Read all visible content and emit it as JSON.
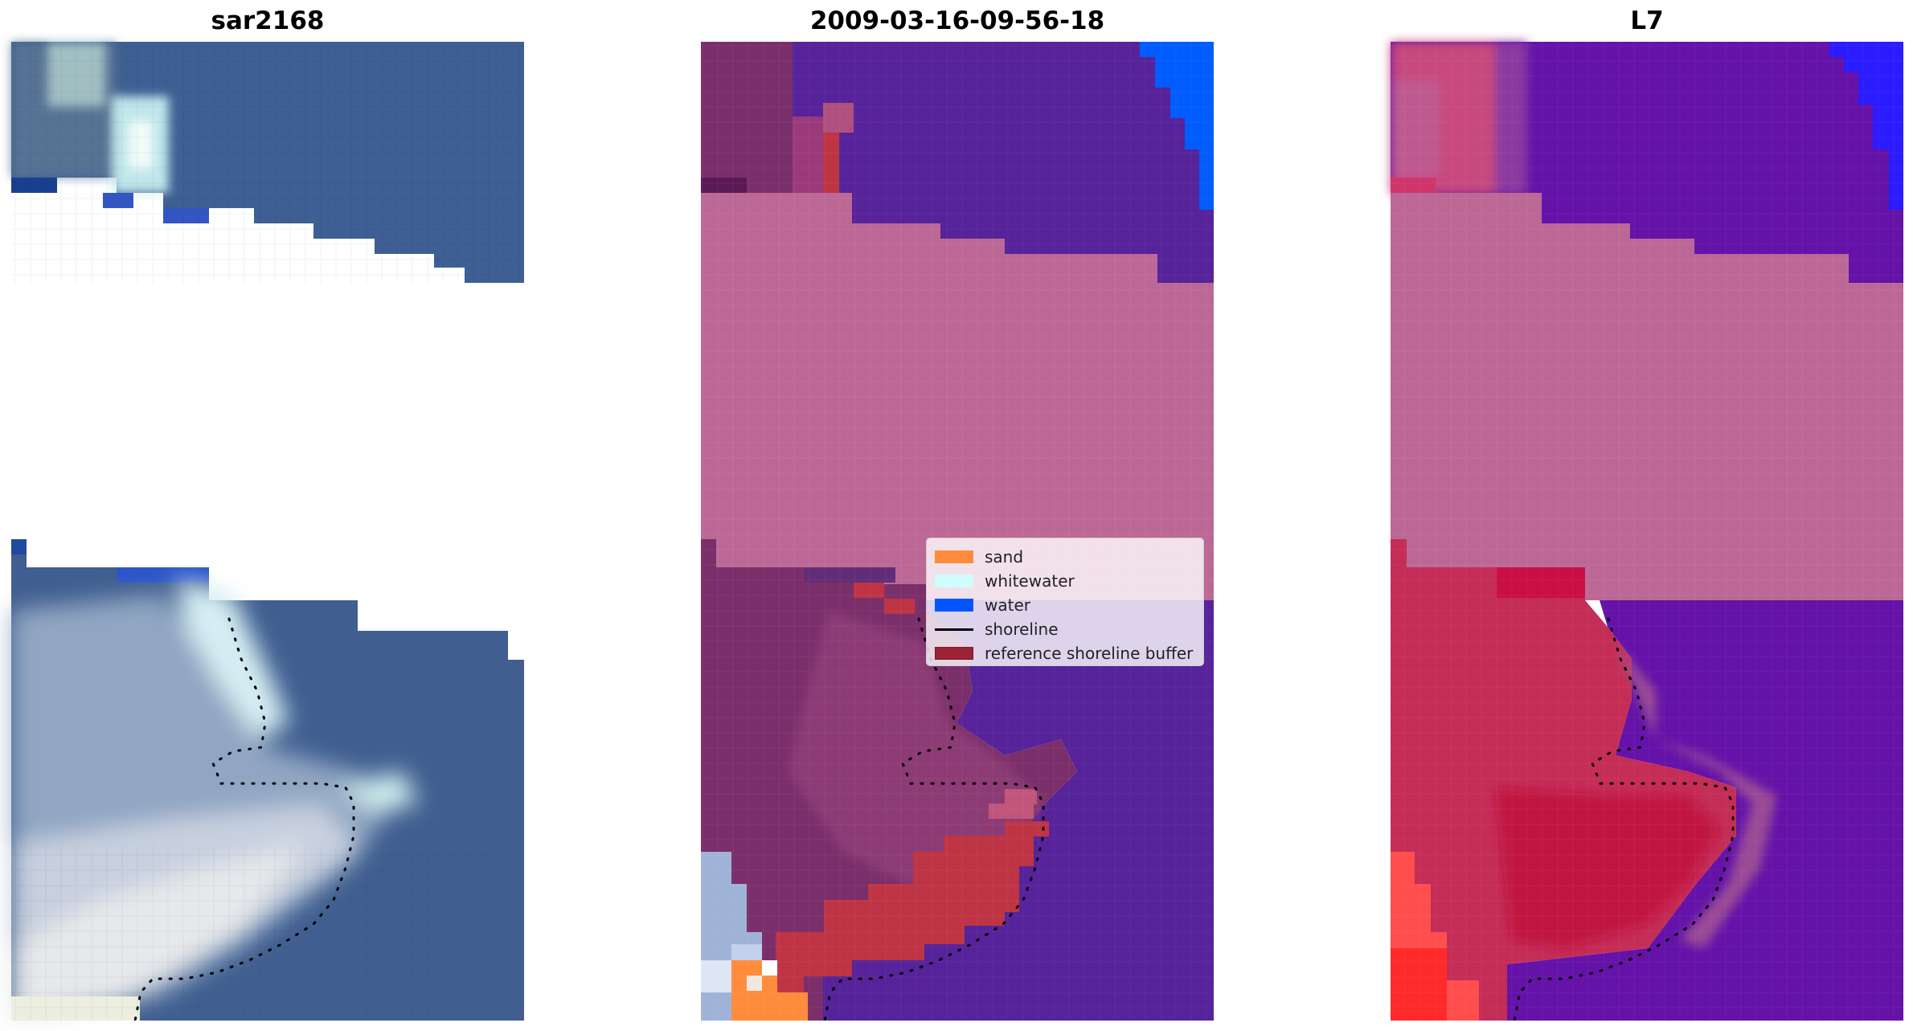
{
  "panels": [
    {
      "title": "sar2168"
    },
    {
      "title": "2009-03-16-09-56-18"
    },
    {
      "title": "L7"
    }
  ],
  "legend": {
    "items": [
      {
        "label": "sand",
        "color": "#ff8c3c",
        "kind": "patch"
      },
      {
        "label": "whitewater",
        "color": "#cffcfc",
        "kind": "patch"
      },
      {
        "label": "water",
        "color": "#0055ff",
        "kind": "patch"
      },
      {
        "label": "shoreline",
        "color": "#000000",
        "kind": "line"
      },
      {
        "label": "reference shoreline buffer",
        "color": "#9b2335",
        "kind": "patch"
      }
    ]
  },
  "colors": {
    "rgb_sea": "#3e5f93",
    "rgb_surf": "#d8e2ee",
    "class_water_deep": "#56239a",
    "class_cloud_mask": "#bc6896",
    "class_land": "#7b2f6a",
    "class_buffer": "#bf3444",
    "class_water_bright": "#005cff",
    "mndwi_land": "#c42d56",
    "mndwi_water": "#6412a8"
  }
}
